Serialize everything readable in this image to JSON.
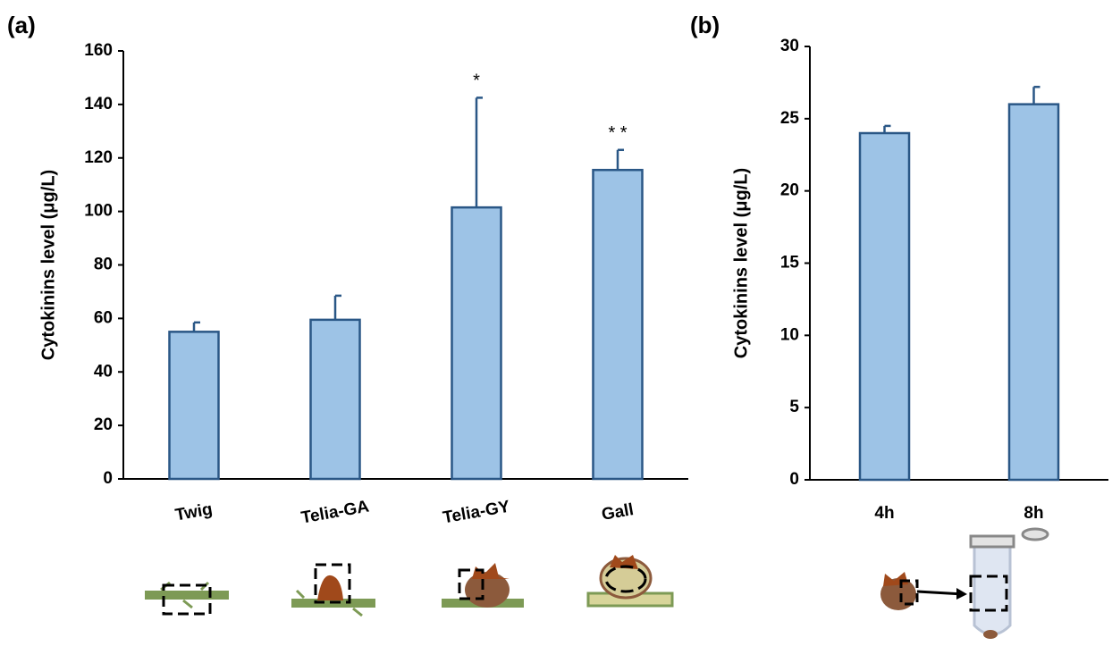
{
  "chart_data": [
    {
      "type": "bar",
      "panel_label": "(a)",
      "y_label": "Cytokinins level (μg/L)",
      "categories": [
        "Twig",
        "Telia-GA",
        "Telia-GY",
        "Gall"
      ],
      "values": [
        55,
        59.5,
        101.5,
        115.5
      ],
      "errors": [
        3.5,
        9,
        41,
        7.5
      ],
      "significance": [
        null,
        null,
        "*",
        "* *"
      ],
      "color": "#9dc3e6",
      "edge_color": "#2a5786",
      "ylim": [
        0,
        160
      ],
      "yticks": [
        0,
        20,
        40,
        60,
        80,
        100,
        120,
        140,
        160
      ],
      "grid": false
    },
    {
      "type": "bar",
      "panel_label": "(b)",
      "y_label": "Cytokinins level (μg/L)",
      "categories": [
        "4h",
        "8h"
      ],
      "values": [
        24,
        26
      ],
      "errors": [
        0.5,
        1.2
      ],
      "color": "#9dc3e6",
      "edge_color": "#2a5786",
      "ylim": [
        0,
        30
      ],
      "yticks": [
        0,
        5,
        10,
        15,
        20,
        25,
        30
      ],
      "grid": false
    }
  ]
}
